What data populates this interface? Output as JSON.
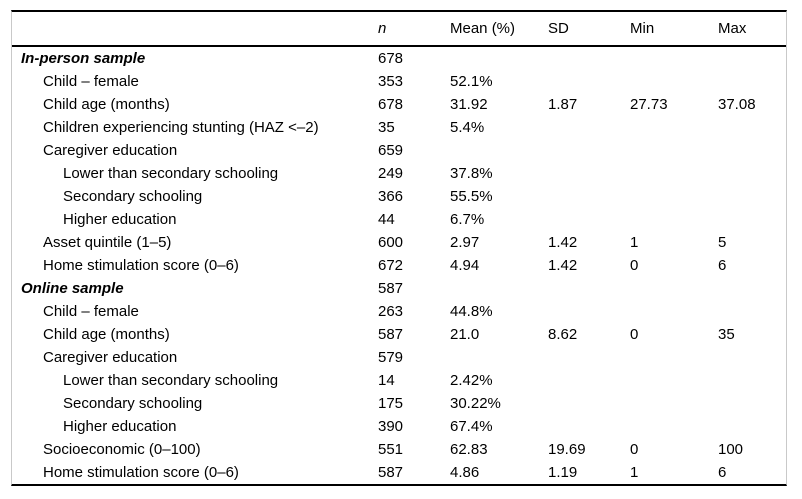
{
  "table": {
    "columns": [
      "",
      "n",
      "Mean (%)",
      "SD",
      "Min",
      "Max"
    ],
    "rows": [
      {
        "label": "In-person sample",
        "indent": 0,
        "style": "section",
        "n": "678",
        "mean": "",
        "sd": "",
        "min": "",
        "max": ""
      },
      {
        "label": "Child – female",
        "indent": 1,
        "style": "normal",
        "n": "353",
        "mean": "52.1%",
        "sd": "",
        "min": "",
        "max": ""
      },
      {
        "label": "Child age (months)",
        "indent": 1,
        "style": "normal",
        "n": "678",
        "mean": "31.92",
        "sd": "1.87",
        "min": "27.73",
        "max": "37.08"
      },
      {
        "label": "Children experiencing stunting (HAZ <–2)",
        "indent": 1,
        "style": "normal",
        "n": "35",
        "mean": "5.4%",
        "sd": "",
        "min": "",
        "max": ""
      },
      {
        "label": "Caregiver education",
        "indent": 1,
        "style": "normal",
        "n": "659",
        "mean": "",
        "sd": "",
        "min": "",
        "max": ""
      },
      {
        "label": "Lower than secondary schooling",
        "indent": 2,
        "style": "normal",
        "n": "249",
        "mean": "37.8%",
        "sd": "",
        "min": "",
        "max": ""
      },
      {
        "label": "Secondary schooling",
        "indent": 2,
        "style": "normal",
        "n": "366",
        "mean": "55.5%",
        "sd": "",
        "min": "",
        "max": ""
      },
      {
        "label": "Higher education",
        "indent": 2,
        "style": "normal",
        "n": "44",
        "mean": "6.7%",
        "sd": "",
        "min": "",
        "max": ""
      },
      {
        "label": "Asset quintile (1–5)",
        "indent": 1,
        "style": "normal",
        "n": "600",
        "mean": "2.97",
        "sd": "1.42",
        "min": "1",
        "max": "5"
      },
      {
        "label": "Home stimulation score (0–6)",
        "indent": 1,
        "style": "normal",
        "n": "672",
        "mean": "4.94",
        "sd": "1.42",
        "min": "0",
        "max": "6"
      },
      {
        "label": "Online sample",
        "indent": 0,
        "style": "section",
        "n": "587",
        "mean": "",
        "sd": "",
        "min": "",
        "max": ""
      },
      {
        "label": "Child – female",
        "indent": 1,
        "style": "normal",
        "n": "263",
        "mean": "44.8%",
        "sd": "",
        "min": "",
        "max": ""
      },
      {
        "label": "Child age (months)",
        "indent": 1,
        "style": "normal",
        "n": "587",
        "mean": "21.0",
        "sd": "8.62",
        "min": "0",
        "max": "35"
      },
      {
        "label": "Caregiver education",
        "indent": 1,
        "style": "normal",
        "n": "579",
        "mean": "",
        "sd": "",
        "min": "",
        "max": ""
      },
      {
        "label": "Lower than secondary schooling",
        "indent": 2,
        "style": "normal",
        "n": "14",
        "mean": "2.42%",
        "sd": "",
        "min": "",
        "max": ""
      },
      {
        "label": "Secondary schooling",
        "indent": 2,
        "style": "normal",
        "n": "175",
        "mean": "30.22%",
        "sd": "",
        "min": "",
        "max": ""
      },
      {
        "label": "Higher education",
        "indent": 2,
        "style": "normal",
        "n": "390",
        "mean": "67.4%",
        "sd": "",
        "min": "",
        "max": ""
      },
      {
        "label": "Socioeconomic (0–100)",
        "indent": 1,
        "style": "normal",
        "n": "551",
        "mean": "62.83",
        "sd": "19.69",
        "min": "0",
        "max": "100"
      },
      {
        "label": "Home stimulation score (0–6)",
        "indent": 1,
        "style": "normal",
        "n": "587",
        "mean": "4.86",
        "sd": "1.19",
        "min": "1",
        "max": "6"
      }
    ]
  }
}
